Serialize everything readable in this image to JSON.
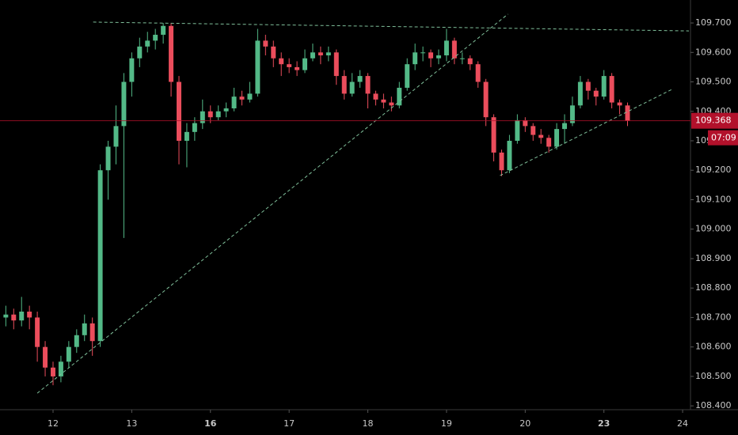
{
  "chart_data": {
    "type": "candlestick",
    "x": [
      -0.6,
      -0.5,
      -0.4,
      -0.3,
      -0.2,
      -0.1,
      0.0,
      0.1,
      0.2,
      0.3,
      0.4,
      0.5,
      0.6,
      0.7,
      0.8,
      0.9,
      1.0,
      1.1,
      1.2,
      1.3,
      1.4,
      1.5,
      1.6,
      1.7,
      1.8,
      1.9,
      2.0,
      2.1,
      2.2,
      2.3,
      2.4,
      2.5,
      2.6,
      2.7,
      2.8,
      2.9,
      3.0,
      3.1,
      3.2,
      3.3,
      3.4,
      3.5,
      3.6,
      3.7,
      3.8,
      3.9,
      4.0,
      4.1,
      4.2,
      4.3,
      4.4,
      4.5,
      4.6,
      4.7,
      4.8,
      4.9,
      5.0,
      5.1,
      5.2,
      5.3,
      5.4,
      5.5,
      5.6,
      5.7,
      5.8,
      5.9,
      6.0,
      6.1,
      6.2,
      6.3,
      6.4,
      6.5,
      6.6,
      6.7,
      6.8,
      6.9,
      7.0,
      7.1,
      7.2,
      7.3
    ],
    "open": [
      108.7,
      108.71,
      108.69,
      108.72,
      108.7,
      108.6,
      108.53,
      108.5,
      108.55,
      108.6,
      108.64,
      108.68,
      108.62,
      109.2,
      109.28,
      109.35,
      109.5,
      109.58,
      109.62,
      109.64,
      109.66,
      109.69,
      109.5,
      109.3,
      109.33,
      109.36,
      109.4,
      109.38,
      109.4,
      109.41,
      109.45,
      109.44,
      109.46,
      109.64,
      109.62,
      109.58,
      109.56,
      109.55,
      109.54,
      109.58,
      109.6,
      109.59,
      109.6,
      109.52,
      109.46,
      109.5,
      109.52,
      109.46,
      109.44,
      109.43,
      109.42,
      109.48,
      109.56,
      109.6,
      109.6,
      109.58,
      109.59,
      109.64,
      109.58,
      109.58,
      109.56,
      109.5,
      109.38,
      109.26,
      109.2,
      109.3,
      109.37,
      109.35,
      109.32,
      109.31,
      109.28,
      109.34,
      109.36,
      109.42,
      109.5,
      109.47,
      109.45,
      109.52,
      109.43,
      109.42
    ],
    "high": [
      108.74,
      108.73,
      108.77,
      108.74,
      108.72,
      108.62,
      108.55,
      108.57,
      108.62,
      108.66,
      108.71,
      108.7,
      109.22,
      109.3,
      109.42,
      109.53,
      109.6,
      109.65,
      109.67,
      109.68,
      109.7,
      109.7,
      109.52,
      109.36,
      109.38,
      109.44,
      109.42,
      109.42,
      109.43,
      109.48,
      109.47,
      109.5,
      109.68,
      109.66,
      109.64,
      109.6,
      109.58,
      109.57,
      109.61,
      109.63,
      109.62,
      109.62,
      109.61,
      109.54,
      109.53,
      109.54,
      109.53,
      109.47,
      109.46,
      109.45,
      109.5,
      109.58,
      109.63,
      109.62,
      109.61,
      109.61,
      109.68,
      109.65,
      109.6,
      109.59,
      109.57,
      109.51,
      109.39,
      109.27,
      109.32,
      109.39,
      109.38,
      109.36,
      109.34,
      109.32,
      109.36,
      109.39,
      109.45,
      109.52,
      109.51,
      109.48,
      109.54,
      109.53,
      109.44,
      109.43
    ],
    "low": [
      108.67,
      108.66,
      108.67,
      108.66,
      108.55,
      108.5,
      108.47,
      108.48,
      108.53,
      108.58,
      108.62,
      108.57,
      108.6,
      109.1,
      109.22,
      108.97,
      109.45,
      109.55,
      109.6,
      109.61,
      109.63,
      109.45,
      109.22,
      109.21,
      109.3,
      109.34,
      109.36,
      109.37,
      109.38,
      109.4,
      109.42,
      109.43,
      109.45,
      109.59,
      109.55,
      109.52,
      109.53,
      109.52,
      109.53,
      109.57,
      109.56,
      109.57,
      109.49,
      109.44,
      109.45,
      109.48,
      109.41,
      109.42,
      109.41,
      109.4,
      109.41,
      109.47,
      109.54,
      109.57,
      109.55,
      109.56,
      109.57,
      109.56,
      109.56,
      109.54,
      109.48,
      109.35,
      109.23,
      109.18,
      109.19,
      109.29,
      109.33,
      109.3,
      109.29,
      109.26,
      109.27,
      109.29,
      109.35,
      109.41,
      109.44,
      109.42,
      109.44,
      109.41,
      109.39,
      109.35
    ],
    "close": [
      108.71,
      108.69,
      108.72,
      108.7,
      108.6,
      108.53,
      108.5,
      108.55,
      108.6,
      108.64,
      108.68,
      108.62,
      109.2,
      109.28,
      109.35,
      109.5,
      109.58,
      109.62,
      109.64,
      109.66,
      109.69,
      109.5,
      109.3,
      109.33,
      109.36,
      109.4,
      109.38,
      109.4,
      109.41,
      109.45,
      109.44,
      109.46,
      109.64,
      109.62,
      109.58,
      109.56,
      109.55,
      109.54,
      109.58,
      109.6,
      109.59,
      109.6,
      109.52,
      109.46,
      109.5,
      109.52,
      109.46,
      109.44,
      109.43,
      109.42,
      109.48,
      109.56,
      109.6,
      109.6,
      109.58,
      109.59,
      109.64,
      109.58,
      109.58,
      109.56,
      109.5,
      109.38,
      109.26,
      109.2,
      109.3,
      109.37,
      109.35,
      109.32,
      109.31,
      109.28,
      109.34,
      109.36,
      109.42,
      109.5,
      109.47,
      109.45,
      109.52,
      109.43,
      109.42,
      109.368
    ],
    "up_color": "#53b987",
    "down_color": "#eb4d5c",
    "xlim": [
      -0.674,
      8.1
    ],
    "xticks": [
      {
        "value": 0,
        "label": "12"
      },
      {
        "value": 1,
        "label": "13"
      },
      {
        "value": 2,
        "label": "16",
        "bold": true
      },
      {
        "value": 3,
        "label": "17"
      },
      {
        "value": 4,
        "label": "18"
      },
      {
        "value": 5,
        "label": "19"
      },
      {
        "value": 6,
        "label": "20"
      },
      {
        "value": 7,
        "label": "23",
        "bold": true
      },
      {
        "value": 8,
        "label": "24"
      }
    ],
    "ylim": [
      108.387,
      109.778
    ],
    "yticks": [
      {
        "value": 108.4,
        "label": "108.400"
      },
      {
        "value": 108.5,
        "label": "108.500"
      },
      {
        "value": 108.6,
        "label": "108.600"
      },
      {
        "value": 108.7,
        "label": "108.700"
      },
      {
        "value": 108.8,
        "label": "108.800"
      },
      {
        "value": 108.9,
        "label": "108.900"
      },
      {
        "value": 109.0,
        "label": "109.000"
      },
      {
        "value": 109.1,
        "label": "109.100"
      },
      {
        "value": 109.2,
        "label": "109.200"
      },
      {
        "value": 109.3,
        "label": "109.300"
      },
      {
        "value": 109.4,
        "label": "109.400"
      },
      {
        "value": 109.5,
        "label": "109.500"
      },
      {
        "value": 109.6,
        "label": "109.600"
      },
      {
        "value": 109.7,
        "label": "109.700"
      }
    ],
    "trendlines": [
      {
        "x": [
          0.51,
          8.08
        ],
        "y": [
          109.703,
          109.673
        ]
      },
      {
        "x": [
          -0.2,
          5.78
        ],
        "y": [
          108.443,
          109.73
        ]
      },
      {
        "x": [
          5.68,
          7.86
        ],
        "y": [
          109.182,
          109.474
        ]
      }
    ],
    "trendline_color": "#7fbf9a",
    "last_price": 109.368,
    "last_price_color": "#b2112b",
    "countdown": "07:09"
  }
}
